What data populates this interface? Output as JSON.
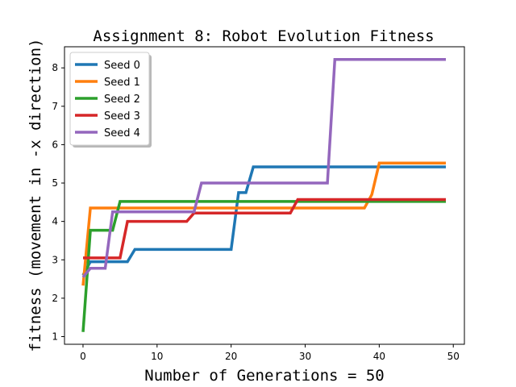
{
  "chart_data": {
    "type": "line",
    "title": "Assignment 8: Robot Evolution Fitness",
    "xlabel": "Number of Generations = 50",
    "ylabel": "fitness (movement in -x direction)",
    "xlim": [
      -2.5,
      51.5
    ],
    "ylim": [
      0.8,
      8.55
    ],
    "xticks": [
      0,
      10,
      20,
      30,
      40,
      50
    ],
    "yticks": [
      1,
      2,
      3,
      4,
      5,
      6,
      7,
      8
    ],
    "grid": false,
    "legend_position": "upper-left",
    "series": [
      {
        "name": "Seed 0",
        "color": "#1f77b4",
        "points": [
          [
            0,
            2.6
          ],
          [
            1,
            2.95
          ],
          [
            6,
            2.95
          ],
          [
            7,
            3.27
          ],
          [
            20,
            3.27
          ],
          [
            21,
            4.75
          ],
          [
            22,
            4.75
          ],
          [
            23,
            5.42
          ],
          [
            49,
            5.42
          ]
        ]
      },
      {
        "name": "Seed 1",
        "color": "#ff7f0e",
        "points": [
          [
            0,
            2.33
          ],
          [
            1,
            4.35
          ],
          [
            38,
            4.35
          ],
          [
            39,
            4.7
          ],
          [
            40,
            5.52
          ],
          [
            49,
            5.52
          ]
        ]
      },
      {
        "name": "Seed 2",
        "color": "#2ca02c",
        "points": [
          [
            0,
            1.12
          ],
          [
            1,
            3.77
          ],
          [
            4,
            3.77
          ],
          [
            5,
            4.52
          ],
          [
            49,
            4.52
          ]
        ]
      },
      {
        "name": "Seed 3",
        "color": "#d62728",
        "points": [
          [
            0,
            3.05
          ],
          [
            5,
            3.05
          ],
          [
            6,
            4.0
          ],
          [
            14,
            4.0
          ],
          [
            15,
            4.22
          ],
          [
            28,
            4.22
          ],
          [
            29,
            4.57
          ],
          [
            49,
            4.57
          ]
        ]
      },
      {
        "name": "Seed 4",
        "color": "#9467bd",
        "points": [
          [
            0,
            2.55
          ],
          [
            1,
            2.78
          ],
          [
            3,
            2.78
          ],
          [
            4,
            4.25
          ],
          [
            15,
            4.25
          ],
          [
            16,
            5.0
          ],
          [
            33,
            5.0
          ],
          [
            34,
            8.22
          ],
          [
            49,
            8.22
          ]
        ]
      }
    ]
  }
}
